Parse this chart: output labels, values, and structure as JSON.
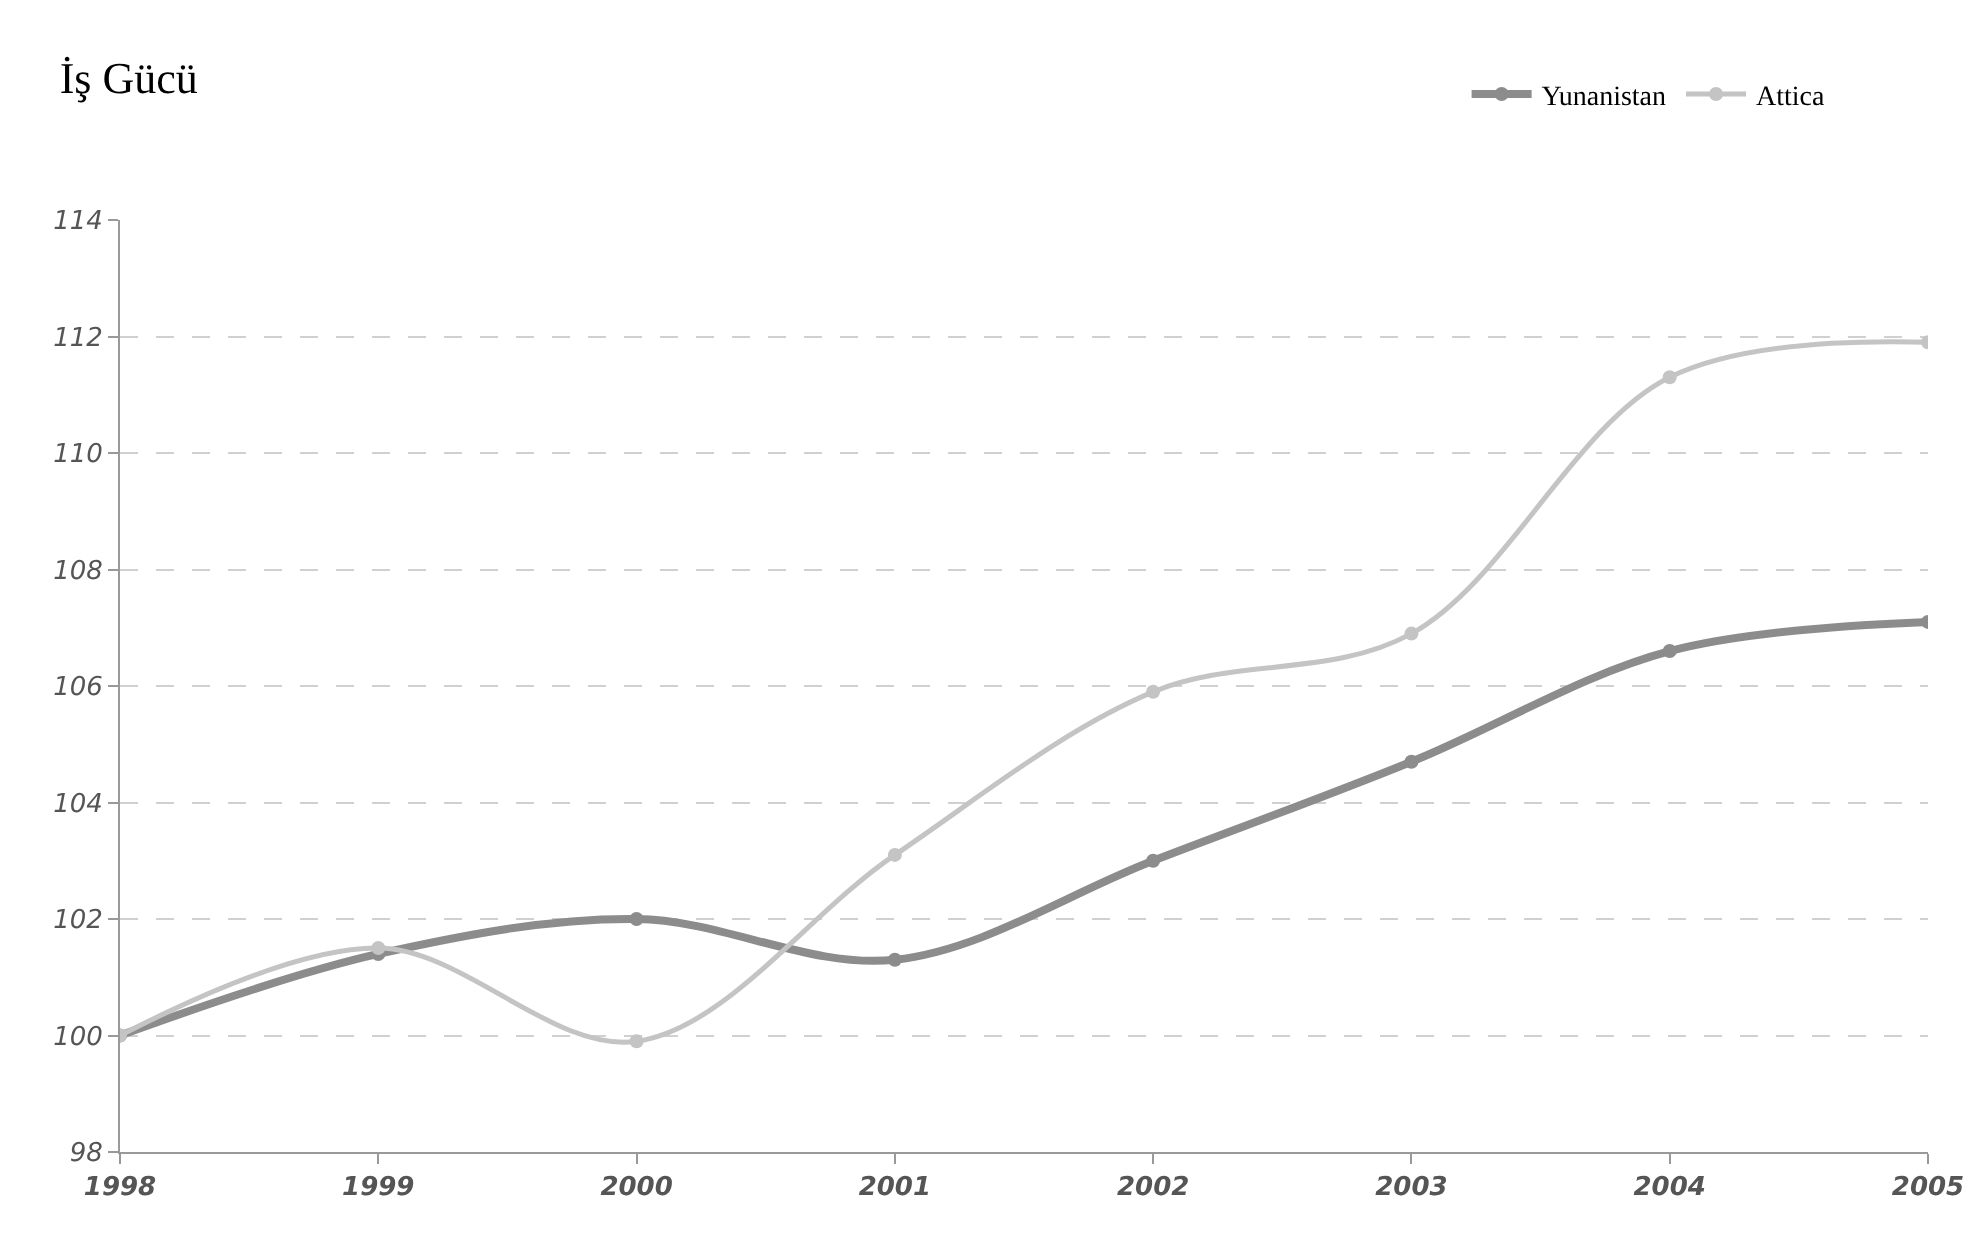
{
  "chart_data": {
    "type": "line",
    "title": "İş Gücü",
    "x": [
      1998,
      1999,
      2000,
      2001,
      2002,
      2003,
      2004,
      2005
    ],
    "series": [
      {
        "name": "Yunanistan",
        "color": "#8c8c8c",
        "values": [
          100,
          101.4,
          102.0,
          101.3,
          103.0,
          104.7,
          106.6,
          107.1
        ]
      },
      {
        "name": "Attica",
        "color": "#c4c4c4",
        "values": [
          100,
          101.5,
          99.9,
          103.1,
          105.9,
          106.9,
          111.3,
          111.9
        ]
      }
    ],
    "xlim": [
      1998,
      2005
    ],
    "xticks": [
      1998,
      1999,
      2000,
      2001,
      2002,
      2003,
      2004,
      2005
    ],
    "ylim": [
      98,
      114
    ],
    "yticks": [
      98,
      100,
      102,
      104,
      106,
      108,
      110,
      112,
      114
    ],
    "grid": "y",
    "legend": "top right",
    "marker": "circle",
    "line_style": "solid"
  }
}
